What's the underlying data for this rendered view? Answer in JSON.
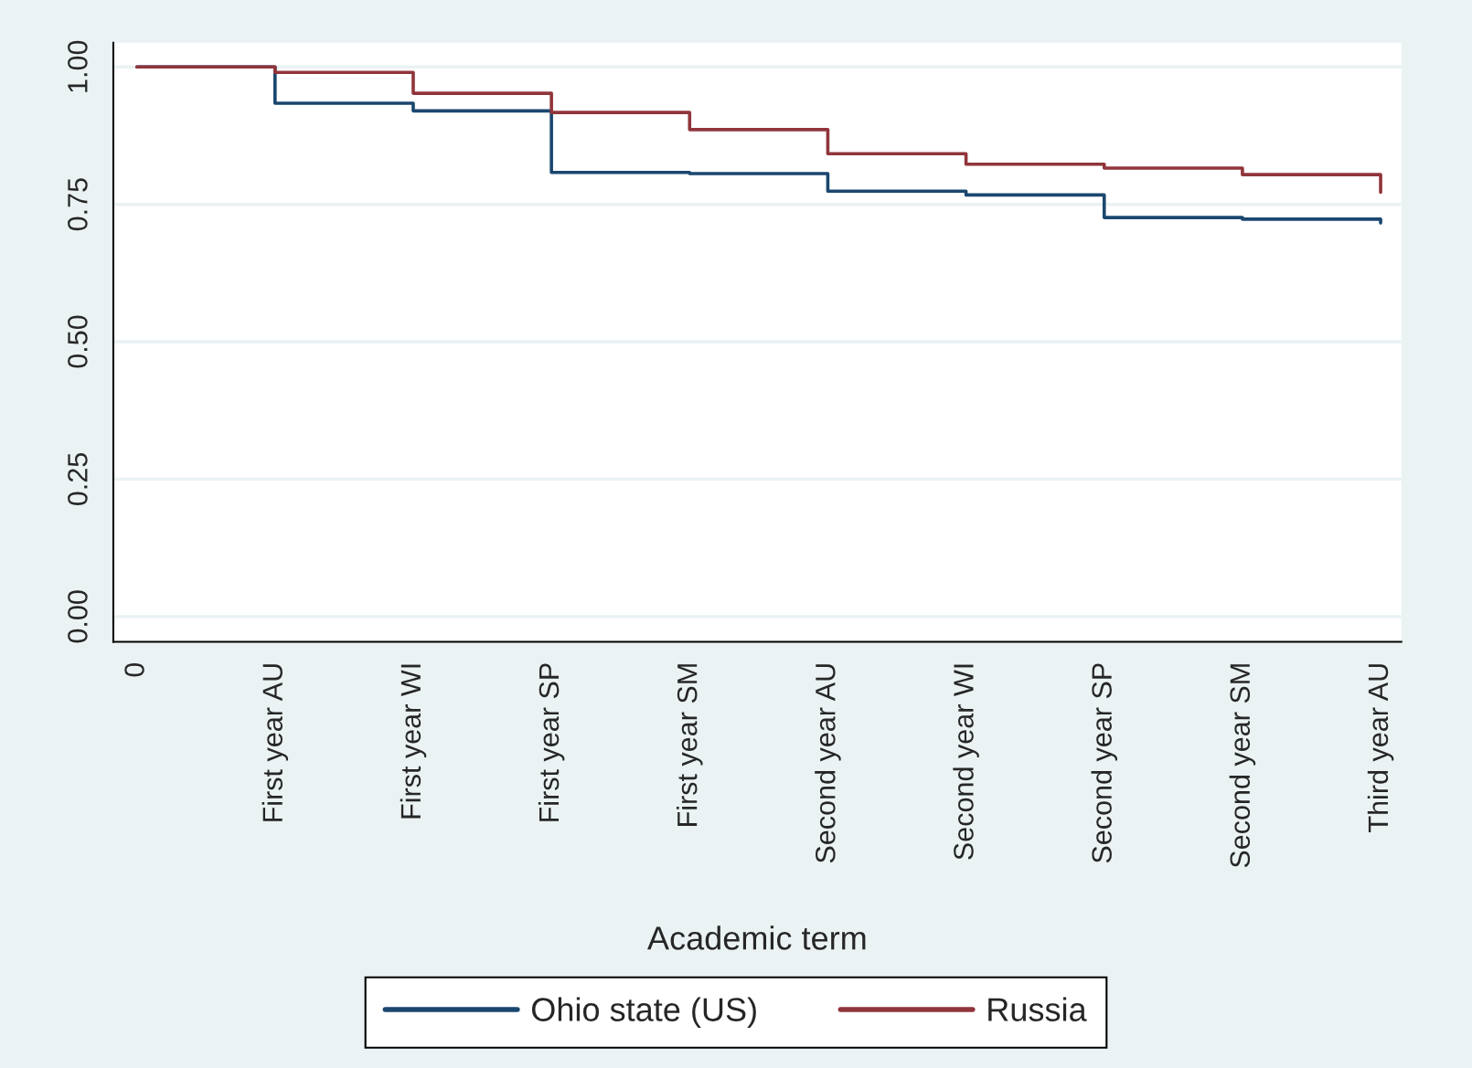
{
  "chart_data": {
    "type": "step",
    "xlabel": "Academic term",
    "categories": [
      "0",
      "First year AU",
      "First year WI",
      "First year SP",
      "First year SM",
      "Second year AU",
      "Second year WI",
      "Second year SP",
      "Second year SM",
      "Third year AU"
    ],
    "series": [
      {
        "name": "Ohio state (US)",
        "color": "#1a476f",
        "values": [
          1.0,
          0.934,
          0.92,
          0.808,
          0.806,
          0.774,
          0.767,
          0.726,
          0.723,
          0.716
        ]
      },
      {
        "name": "Russia",
        "color": "#90353b",
        "values": [
          1.0,
          0.99,
          0.952,
          0.917,
          0.886,
          0.842,
          0.823,
          0.816,
          0.804,
          0.772
        ]
      }
    ],
    "ylim": [
      -0.046,
      1.044
    ],
    "yticks": [
      {
        "value": 0,
        "label": "0.00"
      },
      {
        "value": 0.25,
        "label": "0.25"
      },
      {
        "value": 0.5,
        "label": "0.50"
      },
      {
        "value": 0.75,
        "label": "0.75"
      },
      {
        "value": 1,
        "label": "1.00"
      }
    ],
    "grid": "y",
    "legend": "bottom",
    "line_style": "solid"
  }
}
